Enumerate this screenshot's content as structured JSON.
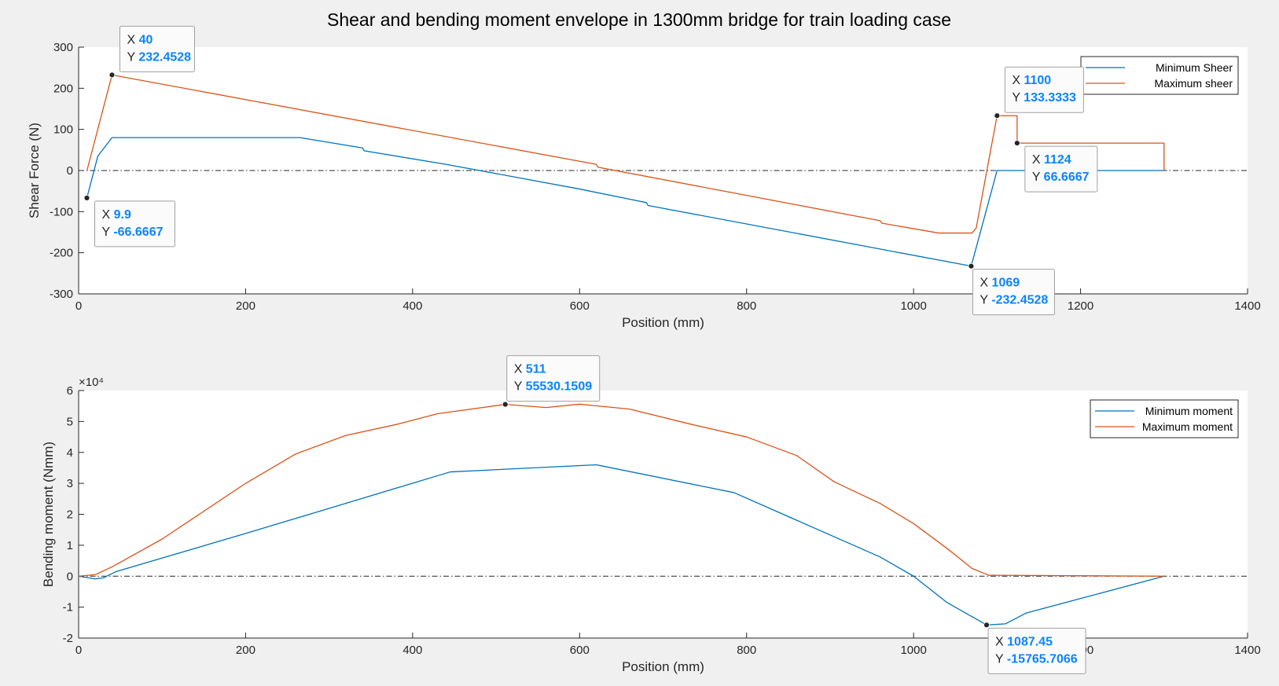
{
  "figure": {
    "title": "Shear and bending moment envelope in 1300mm bridge for train loading case"
  },
  "colors": {
    "min_series": "#0072BD",
    "max_series": "#D95319",
    "datatip_value": "#0a84ff"
  },
  "chart_data": [
    {
      "type": "line",
      "title": "Shear and bending moment envelope in 1300mm bridge for train loading case",
      "xlabel": "Position (mm)",
      "ylabel": "Shear Force (N)",
      "xlim": [
        0,
        1400
      ],
      "ylim": [
        -300,
        300
      ],
      "xticks": [
        0,
        200,
        400,
        600,
        800,
        1000,
        1200,
        1400
      ],
      "yticks": [
        -300,
        -200,
        -100,
        0,
        100,
        200,
        300
      ],
      "xtick_labels": [
        "0",
        "200",
        "400",
        "600",
        "800",
        "1000",
        "1200",
        "1400"
      ],
      "ytick_labels": [
        "-300",
        "-200",
        "-100",
        "0",
        "100",
        "200",
        "300"
      ],
      "zero_line": true,
      "grid": false,
      "legend_position": "top-right",
      "series": [
        {
          "name": "Minimum Sheer",
          "color": "#0072BD",
          "points": [
            [
              9.9,
              -66.6667
            ],
            [
              23,
              35
            ],
            [
              40,
              80
            ],
            [
              265,
              80
            ],
            [
              340,
              55
            ],
            [
              342,
              48
            ],
            [
              440,
              15
            ],
            [
              600,
              -45
            ],
            [
              680,
              -78
            ],
            [
              682,
              -85
            ],
            [
              1069,
              -232.4528
            ],
            [
              1100,
              0
            ],
            [
              1300,
              0
            ]
          ]
        },
        {
          "name": "Maximum sheer",
          "color": "#D95319",
          "points": [
            [
              10,
              0
            ],
            [
              40,
              232.4528
            ],
            [
              620,
              15
            ],
            [
              622,
              8
            ],
            [
              960,
              -122
            ],
            [
              962,
              -128
            ],
            [
              1030,
              -152
            ],
            [
              1070,
              -152
            ],
            [
              1075,
              -140
            ],
            [
              1100,
              133.3333
            ],
            [
              1124,
              133.3333
            ],
            [
              1124,
              66.6667
            ],
            [
              1300,
              66.6667
            ],
            [
              1300,
              0
            ]
          ]
        }
      ],
      "datatips": [
        {
          "x": 40,
          "y": 232.4528,
          "x_text": "40",
          "y_text": "232.4528"
        },
        {
          "x": 9.9,
          "y": -66.6667,
          "x_text": "9.9",
          "y_text": "-66.6667"
        },
        {
          "x": 1100,
          "y": 133.3333,
          "x_text": "1100",
          "y_text": "133.3333"
        },
        {
          "x": 1124,
          "y": 66.6667,
          "x_text": "1124",
          "y_text": "66.6667"
        },
        {
          "x": 1069,
          "y": -232.4528,
          "x_text": "1069",
          "y_text": "-232.4528"
        }
      ],
      "datatip_prefix_x": "X",
      "datatip_prefix_y": "Y"
    },
    {
      "type": "line",
      "title": "",
      "xlabel": "Position (mm)",
      "ylabel": "Bending moment (Nmm)",
      "xlim": [
        0,
        1400
      ],
      "ylim": [
        -20000,
        60000
      ],
      "xticks": [
        0,
        200,
        400,
        600,
        800,
        1000,
        1200,
        1400
      ],
      "yticks": [
        -20000,
        -10000,
        0,
        10000,
        20000,
        30000,
        40000,
        50000,
        60000
      ],
      "xtick_labels": [
        "0",
        "200",
        "400",
        "600",
        "800",
        "1000",
        "1200",
        "1400"
      ],
      "ytick_labels": [
        "-2",
        "-1",
        "0",
        "1",
        "2",
        "3",
        "4",
        "5",
        "6"
      ],
      "y_exponent_label": "×10⁴",
      "zero_line": true,
      "grid": false,
      "legend_position": "top-right",
      "series": [
        {
          "name": "Minimum moment",
          "color": "#0072BD",
          "points": [
            [
              0,
              0
            ],
            [
              20,
              -900
            ],
            [
              30,
              -500
            ],
            [
              45,
              1500
            ],
            [
              200,
              13800
            ],
            [
              445,
              33700
            ],
            [
              620,
              36000
            ],
            [
              785,
              27000
            ],
            [
              960,
              6200
            ],
            [
              1000,
              0
            ],
            [
              1040,
              -8500
            ],
            [
              1087.45,
              -15765.7066
            ],
            [
              1110,
              -15400
            ],
            [
              1135,
              -11900
            ],
            [
              1300,
              0
            ]
          ]
        },
        {
          "name": "Maximum moment",
          "color": "#D95319",
          "points": [
            [
              0,
              0
            ],
            [
              20,
              500
            ],
            [
              40,
              3000
            ],
            [
              100,
              12000
            ],
            [
              200,
              30000
            ],
            [
              260,
              39500
            ],
            [
              320,
              45500
            ],
            [
              380,
              49000
            ],
            [
              430,
              52500
            ],
            [
              511,
              55530.1509
            ],
            [
              560,
              54500
            ],
            [
              600,
              55600
            ],
            [
              660,
              54000
            ],
            [
              735,
              49000
            ],
            [
              800,
              45000
            ],
            [
              860,
              39000
            ],
            [
              905,
              30500
            ],
            [
              960,
              23500
            ],
            [
              1000,
              17000
            ],
            [
              1040,
              9000
            ],
            [
              1070,
              2500
            ],
            [
              1090,
              300
            ],
            [
              1300,
              0
            ]
          ]
        }
      ],
      "datatips": [
        {
          "x": 511,
          "y": 55530.1509,
          "x_text": "511",
          "y_text": "55530.1509"
        },
        {
          "x": 1087.45,
          "y": -15765.7066,
          "x_text": "1087.45",
          "y_text": "-15765.7066"
        }
      ],
      "datatip_prefix_x": "X",
      "datatip_prefix_y": "Y"
    }
  ]
}
